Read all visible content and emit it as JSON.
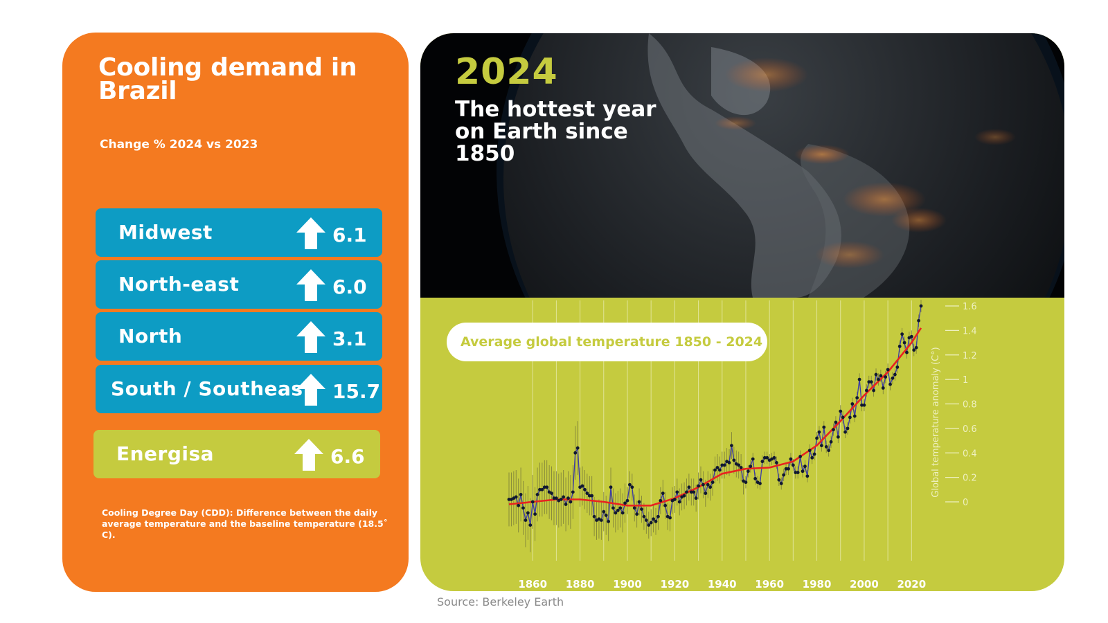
{
  "left": {
    "title": "Cooling demand in Brazil",
    "subtitle": "Change % 2024 vs 2023",
    "rows": [
      {
        "name": "Midwest",
        "value": "6.1",
        "icon": "arrow-up-icon"
      },
      {
        "name": "North-east",
        "value": "6.0",
        "icon": "arrow-up-icon"
      },
      {
        "name": "North",
        "value": "3.1",
        "icon": "arrow-up-icon"
      },
      {
        "name": "South / Southeast",
        "value": "15.7",
        "icon": "arrow-up-icon"
      }
    ],
    "highlight": {
      "name": "Energisa",
      "value": "6.6",
      "icon": "arrow-up-icon"
    },
    "footnote": "Cooling Degree Day (CDD): Difference between the daily average temperature and the baseline temperature (18.5˚ C).",
    "colors": {
      "panel": "#f47a20",
      "row": "#0d9cc4",
      "highlight": "#c5cb3f"
    }
  },
  "right": {
    "year": "2024",
    "headline": "The hottest year on Earth since 1850",
    "colors": {
      "panel": "#c5cb3f",
      "trend": "#e8231f",
      "series": "#3c3ca8",
      "points": "#101830"
    }
  },
  "source": "Source: Berkeley Earth",
  "chart_data": {
    "type": "line",
    "title": "Average global temperature 1850 - 2024",
    "xlabel": "",
    "ylabel": "Global temperature anomaly (C°)",
    "xlim": [
      1850,
      2024
    ],
    "ylim": [
      -0.2,
      1.6
    ],
    "x_ticks": [
      "1860",
      "1880",
      "1900",
      "1920",
      "1940",
      "1960",
      "1980",
      "2000",
      "2020"
    ],
    "y_ticks": [
      "0",
      "0.2",
      "0.4",
      "0.6",
      "0.8",
      "1",
      "1.2",
      "1.4",
      "1.6"
    ],
    "grid": "vertical",
    "series": [
      {
        "style": "line with points and uncertainty whiskers",
        "points": [
          [
            1850,
            0.02
          ],
          [
            1851,
            0.02
          ],
          [
            1852,
            0.03
          ],
          [
            1853,
            0.04
          ],
          [
            1854,
            -0.03
          ],
          [
            1855,
            0.06
          ],
          [
            1856,
            -0.05
          ],
          [
            1857,
            -0.15
          ],
          [
            1858,
            -0.09
          ],
          [
            1859,
            -0.19
          ],
          [
            1860,
            0.0
          ],
          [
            1861,
            -0.1
          ],
          [
            1862,
            0.06
          ],
          [
            1863,
            0.1
          ],
          [
            1864,
            0.1
          ],
          [
            1865,
            0.12
          ],
          [
            1866,
            0.12
          ],
          [
            1867,
            0.08
          ],
          [
            1868,
            0.07
          ],
          [
            1869,
            0.03
          ],
          [
            1870,
            0.03
          ],
          [
            1871,
            0.01
          ],
          [
            1872,
            0.02
          ],
          [
            1873,
            0.04
          ],
          [
            1874,
            -0.02
          ],
          [
            1875,
            0.03
          ],
          [
            1876,
            0.0
          ],
          [
            1877,
            0.08
          ],
          [
            1878,
            0.4
          ],
          [
            1879,
            0.44
          ],
          [
            1880,
            0.12
          ],
          [
            1881,
            0.13
          ],
          [
            1882,
            0.1
          ],
          [
            1883,
            0.07
          ],
          [
            1884,
            0.05
          ],
          [
            1885,
            0.05
          ],
          [
            1886,
            -0.12
          ],
          [
            1887,
            -0.15
          ],
          [
            1888,
            -0.14
          ],
          [
            1889,
            -0.15
          ],
          [
            1890,
            -0.08
          ],
          [
            1891,
            -0.11
          ],
          [
            1892,
            -0.16
          ],
          [
            1893,
            0.12
          ],
          [
            1894,
            -0.05
          ],
          [
            1895,
            -0.09
          ],
          [
            1896,
            -0.07
          ],
          [
            1897,
            -0.05
          ],
          [
            1898,
            -0.09
          ],
          [
            1899,
            -0.01
          ],
          [
            1900,
            0.01
          ],
          [
            1901,
            0.14
          ],
          [
            1902,
            0.12
          ],
          [
            1903,
            -0.05
          ],
          [
            1904,
            -0.1
          ],
          [
            1905,
            0.0
          ],
          [
            1906,
            -0.06
          ],
          [
            1907,
            -0.12
          ],
          [
            1908,
            -0.15
          ],
          [
            1909,
            -0.19
          ],
          [
            1910,
            -0.17
          ],
          [
            1911,
            -0.14
          ],
          [
            1912,
            -0.16
          ],
          [
            1913,
            -0.12
          ],
          [
            1914,
            0.01
          ],
          [
            1915,
            0.07
          ],
          [
            1916,
            -0.03
          ],
          [
            1917,
            -0.12
          ],
          [
            1918,
            -0.13
          ],
          [
            1919,
            0.01
          ],
          [
            1920,
            0.02
          ],
          [
            1921,
            0.08
          ],
          [
            1922,
            0.0
          ],
          [
            1923,
            0.04
          ],
          [
            1924,
            0.05
          ],
          [
            1925,
            0.08
          ],
          [
            1926,
            0.12
          ],
          [
            1927,
            0.08
          ],
          [
            1928,
            0.08
          ],
          [
            1929,
            0.03
          ],
          [
            1930,
            0.13
          ],
          [
            1931,
            0.18
          ],
          [
            1932,
            0.14
          ],
          [
            1933,
            0.07
          ],
          [
            1934,
            0.14
          ],
          [
            1935,
            0.12
          ],
          [
            1936,
            0.16
          ],
          [
            1937,
            0.26
          ],
          [
            1938,
            0.28
          ],
          [
            1939,
            0.26
          ],
          [
            1940,
            0.3
          ],
          [
            1941,
            0.3
          ],
          [
            1942,
            0.33
          ],
          [
            1943,
            0.32
          ],
          [
            1944,
            0.46
          ],
          [
            1945,
            0.34
          ],
          [
            1946,
            0.31
          ],
          [
            1947,
            0.3
          ],
          [
            1948,
            0.28
          ],
          [
            1949,
            0.17
          ],
          [
            1950,
            0.16
          ],
          [
            1951,
            0.25
          ],
          [
            1952,
            0.29
          ],
          [
            1953,
            0.35
          ],
          [
            1954,
            0.19
          ],
          [
            1955,
            0.16
          ],
          [
            1956,
            0.15
          ],
          [
            1957,
            0.33
          ],
          [
            1958,
            0.36
          ],
          [
            1959,
            0.36
          ],
          [
            1960,
            0.34
          ],
          [
            1961,
            0.35
          ],
          [
            1962,
            0.36
          ],
          [
            1963,
            0.32
          ],
          [
            1964,
            0.18
          ],
          [
            1965,
            0.15
          ],
          [
            1966,
            0.22
          ],
          [
            1967,
            0.27
          ],
          [
            1968,
            0.27
          ],
          [
            1969,
            0.35
          ],
          [
            1970,
            0.3
          ],
          [
            1971,
            0.24
          ],
          [
            1972,
            0.24
          ],
          [
            1973,
            0.37
          ],
          [
            1974,
            0.25
          ],
          [
            1975,
            0.29
          ],
          [
            1976,
            0.21
          ],
          [
            1977,
            0.42
          ],
          [
            1978,
            0.36
          ],
          [
            1979,
            0.39
          ],
          [
            1980,
            0.52
          ],
          [
            1981,
            0.57
          ],
          [
            1982,
            0.46
          ],
          [
            1983,
            0.61
          ],
          [
            1984,
            0.45
          ],
          [
            1985,
            0.42
          ],
          [
            1986,
            0.49
          ],
          [
            1987,
            0.59
          ],
          [
            1988,
            0.65
          ],
          [
            1989,
            0.53
          ],
          [
            1990,
            0.74
          ],
          [
            1991,
            0.69
          ],
          [
            1992,
            0.57
          ],
          [
            1993,
            0.6
          ],
          [
            1994,
            0.69
          ],
          [
            1995,
            0.8
          ],
          [
            1996,
            0.7
          ],
          [
            1997,
            0.85
          ],
          [
            1998,
            1.0
          ],
          [
            1999,
            0.79
          ],
          [
            2000,
            0.79
          ],
          [
            2001,
            0.91
          ],
          [
            2002,
            0.98
          ],
          [
            2003,
            0.98
          ],
          [
            2004,
            0.91
          ],
          [
            2005,
            1.04
          ],
          [
            2006,
            1.0
          ],
          [
            2007,
            1.03
          ],
          [
            2008,
            0.93
          ],
          [
            2009,
            1.02
          ],
          [
            2010,
            1.08
          ],
          [
            2011,
            0.96
          ],
          [
            2012,
            1.01
          ],
          [
            2013,
            1.04
          ],
          [
            2014,
            1.1
          ],
          [
            2015,
            1.27
          ],
          [
            2016,
            1.37
          ],
          [
            2017,
            1.3
          ],
          [
            2018,
            1.22
          ],
          [
            2019,
            1.34
          ],
          [
            2020,
            1.35
          ],
          [
            2021,
            1.24
          ],
          [
            2022,
            1.26
          ],
          [
            2023,
            1.48
          ],
          [
            2024,
            1.6
          ]
        ]
      },
      {
        "style": "smoothed trend",
        "points": [
          [
            1850,
            -0.02
          ],
          [
            1860,
            0.0
          ],
          [
            1870,
            0.02
          ],
          [
            1880,
            0.02
          ],
          [
            1890,
            0.0
          ],
          [
            1900,
            -0.03
          ],
          [
            1910,
            -0.03
          ],
          [
            1920,
            0.03
          ],
          [
            1930,
            0.12
          ],
          [
            1940,
            0.23
          ],
          [
            1950,
            0.27
          ],
          [
            1960,
            0.28
          ],
          [
            1970,
            0.33
          ],
          [
            1980,
            0.46
          ],
          [
            1990,
            0.66
          ],
          [
            2000,
            0.87
          ],
          [
            2010,
            1.06
          ],
          [
            2020,
            1.3
          ],
          [
            2024,
            1.42
          ]
        ]
      }
    ]
  }
}
